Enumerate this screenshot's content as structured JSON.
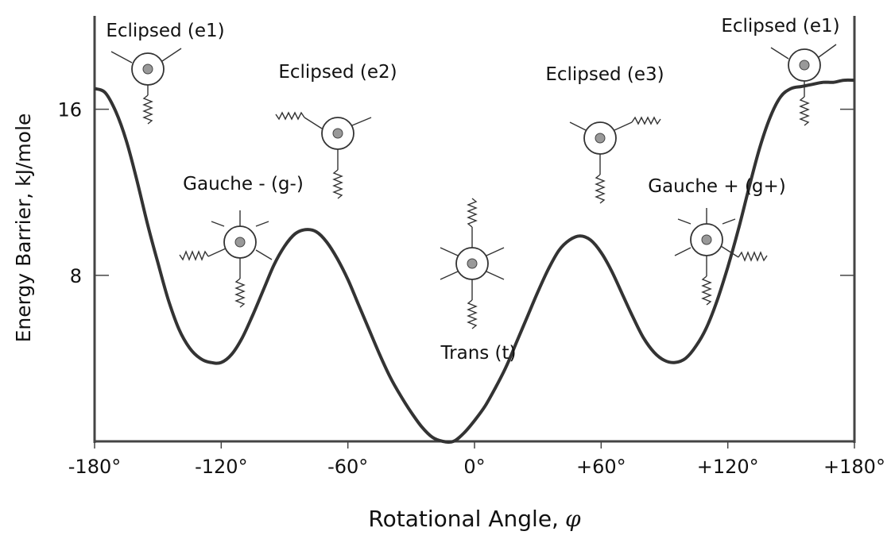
{
  "chart_data": {
    "type": "line",
    "title": "",
    "xlabel": "Rotational Angle,",
    "xlabel_symbol": "φ",
    "ylabel": "Energy Barrier, kJ/mole",
    "xlim": [
      -180,
      180
    ],
    "ylim": [
      0,
      20.5
    ],
    "grid": false,
    "x_ticks": [
      -180,
      -120,
      -60,
      0,
      60,
      120,
      180
    ],
    "x_tick_labels": [
      "-180°",
      "-120°",
      "-60°",
      "0°",
      "+60°",
      "+120°",
      "+180°"
    ],
    "y_ticks": [
      8,
      16
    ],
    "y_tick_labels": [
      "8",
      "16"
    ],
    "series": [
      {
        "x": [
          -180,
          -175,
          -170,
          -165,
          -160,
          -155,
          -150,
          -145,
          -140,
          -135,
          -130,
          -125,
          -120,
          -115,
          -110,
          -105,
          -100,
          -95,
          -90,
          -85,
          -80,
          -75,
          -70,
          -65,
          -60,
          -55,
          -50,
          -45,
          -40,
          -35,
          -30,
          -25,
          -20,
          -15,
          -10,
          -5,
          0,
          5,
          10,
          15,
          20,
          25,
          30,
          35,
          40,
          45,
          50,
          55,
          60,
          65,
          70,
          75,
          80,
          85,
          90,
          95,
          100,
          105,
          110,
          115,
          120,
          125,
          130,
          135,
          140,
          145,
          150,
          155,
          160,
          165,
          170,
          175,
          180
        ],
        "y": [
          17.0,
          16.8,
          15.9,
          14.5,
          12.6,
          10.5,
          8.6,
          6.8,
          5.4,
          4.5,
          4.0,
          3.8,
          3.8,
          4.2,
          5.0,
          6.1,
          7.3,
          8.5,
          9.4,
          10.0,
          10.2,
          10.1,
          9.6,
          8.8,
          7.8,
          6.6,
          5.4,
          4.2,
          3.1,
          2.2,
          1.4,
          0.7,
          0.2,
          0.0,
          0.0,
          0.4,
          1.0,
          1.7,
          2.6,
          3.6,
          4.8,
          6.0,
          7.2,
          8.3,
          9.2,
          9.7,
          9.9,
          9.7,
          9.1,
          8.2,
          7.1,
          6.0,
          5.0,
          4.3,
          3.9,
          3.8,
          4.0,
          4.6,
          5.5,
          6.8,
          8.4,
          10.2,
          12.2,
          14.1,
          15.6,
          16.6,
          17.0,
          17.1,
          17.2,
          17.3,
          17.3,
          17.4,
          17.4
        ]
      }
    ],
    "annotations": [
      {
        "label": "Eclipsed (e1)",
        "near_x": -180
      },
      {
        "label": "Eclipsed (e2)",
        "near_x": -60
      },
      {
        "label": "Gauche - (g-)",
        "near_x": -120
      },
      {
        "label": "Trans (t)",
        "near_x": 0
      },
      {
        "label": "Eclipsed (e3)",
        "near_x": 60
      },
      {
        "label": "Gauche + (g+)",
        "near_x": 120
      },
      {
        "label": "Eclipsed (e1)",
        "near_x": 180
      }
    ]
  }
}
